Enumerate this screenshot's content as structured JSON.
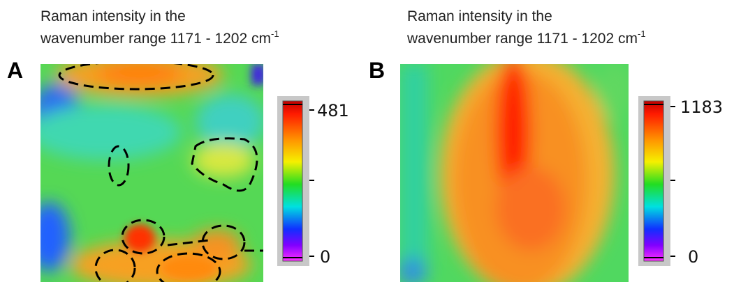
{
  "panels": [
    {
      "label": "A",
      "title_lines": [
        "Raman intensity in the",
        "wavenumber range 1171 - 1202 cm"
      ],
      "title_superscript": "-1",
      "colorbar": {
        "max_label": "481",
        "min_label": "0"
      }
    },
    {
      "label": "B",
      "title_lines": [
        "Raman intensity in the",
        "wavenumber range 1171 - 1202 cm"
      ],
      "title_superscript": "-1",
      "colorbar": {
        "max_label": "1183",
        "min_label": "0"
      }
    }
  ]
}
